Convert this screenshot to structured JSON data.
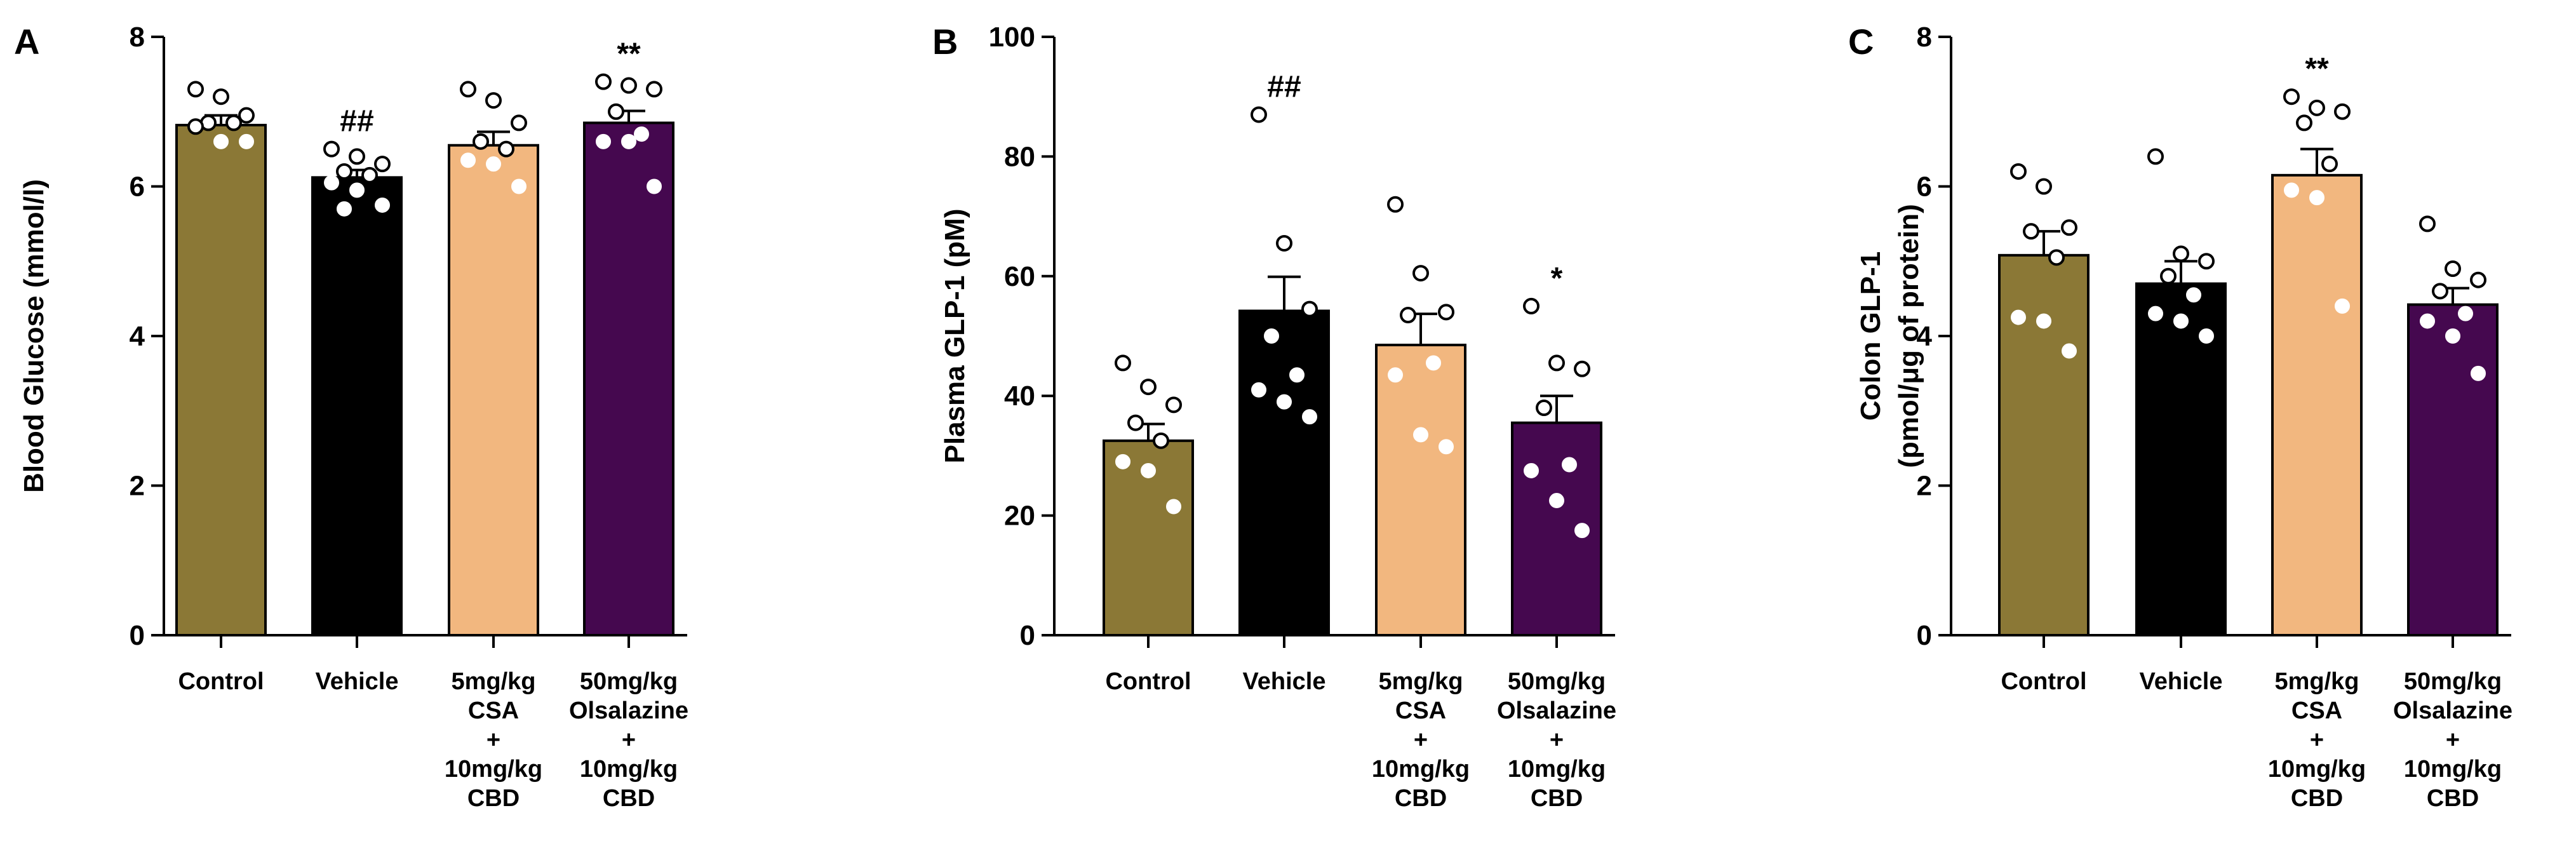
{
  "colors": {
    "Control": "#8b7836",
    "Vehicle": "#000000",
    "CSA+CBD": "#f2b77f",
    "Olsalazine+CBD": "#45084f"
  },
  "categories": [
    {
      "lines": [
        "Control"
      ]
    },
    {
      "lines": [
        "Vehicle"
      ]
    },
    {
      "lines": [
        "5mg/kg",
        "CSA",
        "+",
        "10mg/kg",
        "CBD"
      ]
    },
    {
      "lines": [
        "50mg/kg",
        "Olsalazine",
        "+",
        "10mg/kg",
        "CBD"
      ]
    }
  ],
  "chart_data": [
    {
      "panel": "A",
      "type": "bar",
      "ylabel_lines": [
        "Blood Glucose (mmol/l)"
      ],
      "ylim": [
        0,
        8
      ],
      "yticks": [
        0,
        2,
        4,
        6,
        8
      ],
      "series": [
        {
          "category": "Control",
          "mean": 6.82,
          "sem": 0.13,
          "significance": "",
          "points": [
            7.3,
            7.2,
            6.95,
            6.85,
            6.85,
            6.8,
            6.6,
            6.6
          ]
        },
        {
          "category": "Vehicle",
          "mean": 6.12,
          "sem": 0.1,
          "significance": "##",
          "points": [
            6.5,
            6.4,
            6.3,
            6.2,
            6.15,
            6.05,
            5.95,
            5.75,
            5.7
          ]
        },
        {
          "category": "5mg/kg CSA + 10mg/kg CBD",
          "mean": 6.55,
          "sem": 0.18,
          "significance": "",
          "points": [
            7.3,
            7.15,
            6.85,
            6.6,
            6.5,
            6.35,
            6.3,
            6.0
          ]
        },
        {
          "category": "50mg/kg Olsalazine + 10mg/kg CBD",
          "mean": 6.85,
          "sem": 0.16,
          "significance": "**",
          "points": [
            7.4,
            7.35,
            7.3,
            7.0,
            6.7,
            6.6,
            6.6,
            6.0
          ]
        }
      ]
    },
    {
      "panel": "B",
      "type": "bar",
      "ylabel_lines": [
        "Plasma GLP-1 (pM)"
      ],
      "ylim": [
        0,
        100
      ],
      "yticks": [
        0,
        20,
        40,
        60,
        80,
        100
      ],
      "series": [
        {
          "category": "Control",
          "mean": 32.5,
          "sem": 2.8,
          "significance": "",
          "points": [
            45.5,
            41.5,
            38.5,
            35.5,
            32.5,
            29.0,
            27.5,
            21.5
          ]
        },
        {
          "category": "Vehicle",
          "mean": 54.2,
          "sem": 5.7,
          "significance": "##",
          "points": [
            87.0,
            65.5,
            54.5,
            50.0,
            43.5,
            41.0,
            39.0,
            36.5
          ]
        },
        {
          "category": "5mg/kg CSA + 10mg/kg CBD",
          "mean": 48.5,
          "sem": 5.2,
          "significance": "",
          "points": [
            72.0,
            60.5,
            54.0,
            53.5,
            45.5,
            43.5,
            33.5,
            31.5
          ]
        },
        {
          "category": "50mg/kg Olsalazine + 10mg/kg CBD",
          "mean": 35.5,
          "sem": 4.5,
          "significance": "*",
          "points": [
            55.0,
            45.5,
            44.5,
            38.0,
            28.5,
            27.5,
            22.5,
            17.5
          ]
        }
      ]
    },
    {
      "panel": "C",
      "type": "bar",
      "ylabel_lines": [
        "Colon GLP-1",
        "(pmol/μg of protein)"
      ],
      "ylim": [
        0,
        8
      ],
      "yticks": [
        0,
        2,
        4,
        6,
        8
      ],
      "series": [
        {
          "category": "Control",
          "mean": 5.08,
          "sem": 0.32,
          "significance": "",
          "points": [
            6.2,
            6.0,
            5.45,
            5.4,
            5.05,
            4.25,
            4.2,
            3.8
          ]
        },
        {
          "category": "Vehicle",
          "mean": 4.7,
          "sem": 0.3,
          "significance": "",
          "points": [
            6.4,
            5.1,
            5.0,
            4.8,
            4.55,
            4.3,
            4.2,
            4.0
          ]
        },
        {
          "category": "5mg/kg CSA + 10mg/kg CBD",
          "mean": 6.15,
          "sem": 0.35,
          "significance": "**",
          "points": [
            7.2,
            7.05,
            7.0,
            6.85,
            6.3,
            5.95,
            5.85,
            4.4
          ]
        },
        {
          "category": "50mg/kg Olsalazine + 10mg/kg CBD",
          "mean": 4.42,
          "sem": 0.22,
          "significance": "",
          "points": [
            5.5,
            4.9,
            4.75,
            4.6,
            4.3,
            4.2,
            4.0,
            3.5
          ]
        }
      ]
    }
  ]
}
